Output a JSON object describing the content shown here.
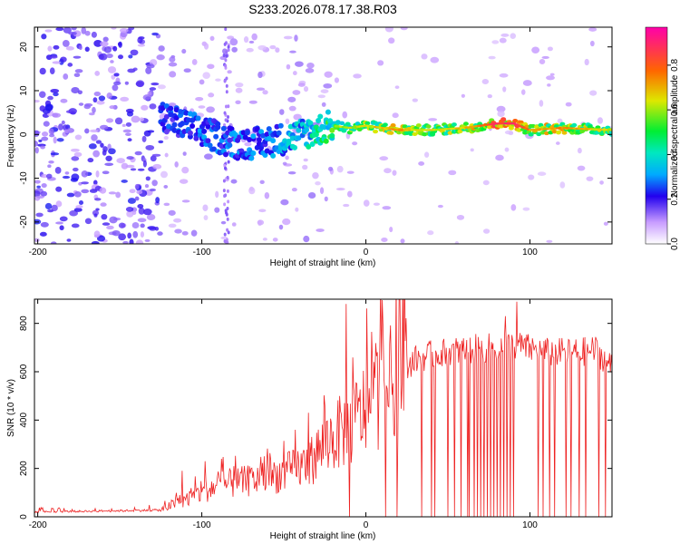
{
  "chart_data": [
    {
      "type": "heatmap",
      "title": "S233.2026.078.17.38.R03",
      "xlabel": "Height of straight line (km)",
      "ylabel": "Frequency (Hz)",
      "xlim": [
        -202,
        150
      ],
      "ylim": [
        -25,
        24.5
      ],
      "xticks": [
        -200,
        -100,
        0,
        100
      ],
      "xtick_labels": [
        "-200",
        "-100",
        "0",
        "100"
      ],
      "yticks": [
        -20,
        -10,
        0,
        10,
        20
      ],
      "ytick_labels": [
        "-20",
        "-10",
        "0",
        "10",
        "20"
      ],
      "colorbar": {
        "label": "Normalized spectral amplitude",
        "range": [
          0.0,
          0.97
        ],
        "ticks": [
          0.0,
          0.2,
          0.4,
          0.6,
          0.8
        ],
        "tick_labels": [
          "0.0",
          "0.2",
          "0.4",
          "0.6",
          "0.8"
        ]
      },
      "ridge": {
        "x": [
          -125,
          -110,
          -95,
          -80,
          -65,
          -50,
          -40,
          -30,
          -20,
          -10,
          0,
          20,
          40,
          60,
          80,
          90,
          100,
          120,
          150
        ],
        "y": [
          4,
          2,
          0,
          -2,
          -2,
          -1,
          0,
          1,
          2,
          1.5,
          2,
          1,
          1,
          1.5,
          2.5,
          2.5,
          1,
          1.5,
          1
        ],
        "amplitude": [
          0.25,
          0.3,
          0.3,
          0.3,
          0.3,
          0.35,
          0.4,
          0.45,
          0.55,
          0.6,
          0.6,
          0.7,
          0.6,
          0.65,
          0.85,
          0.9,
          0.7,
          0.7,
          0.6
        ]
      }
    },
    {
      "type": "line",
      "xlabel": "Height of straight line (km)",
      "ylabel": "SNR (10 * v/v)",
      "xlim": [
        -202,
        150
      ],
      "ylim": [
        0,
        900
      ],
      "xticks": [
        -200,
        -100,
        0,
        100
      ],
      "xtick_labels": [
        "-200",
        "-100",
        "0",
        "100"
      ],
      "yticks": [
        0,
        200,
        400,
        600,
        800
      ],
      "ytick_labels": [
        "0",
        "200",
        "400",
        "600",
        "800"
      ],
      "color": "#ee2222",
      "series": [
        {
          "name": "SNR",
          "envelope_x": [
            -202,
            -150,
            -125,
            -115,
            -100,
            -90,
            -70,
            -50,
            -35,
            -25,
            -20,
            -10,
            0,
            10,
            20,
            25,
            30,
            40,
            60,
            80,
            90,
            110,
            130,
            140,
            150
          ],
          "envelope_y": [
            20,
            25,
            28,
            60,
            100,
            130,
            150,
            180,
            220,
            300,
            330,
            370,
            450,
            520,
            580,
            620,
            650,
            670,
            690,
            700,
            710,
            680,
            680,
            690,
            620
          ],
          "spikes": [
            {
              "x": -112,
              "y": 190
            },
            {
              "x": -98,
              "y": 230
            },
            {
              "x": -88,
              "y": 240
            },
            {
              "x": -62,
              "y": 250
            },
            {
              "x": -43,
              "y": 360
            },
            {
              "x": -35,
              "y": 430
            },
            {
              "x": -25,
              "y": 460
            },
            {
              "x": -12,
              "y": 880
            },
            {
              "x": 5,
              "y": 640
            },
            {
              "x": 85,
              "y": 830
            },
            {
              "x": 92,
              "y": 890
            }
          ],
          "dropouts_x": [
            -10,
            12,
            19,
            34,
            40,
            42,
            50,
            54,
            58,
            62,
            63,
            66,
            68,
            70,
            72,
            74,
            76,
            78,
            80,
            82,
            84,
            86,
            88,
            90,
            105,
            108,
            112,
            115,
            122,
            125,
            130,
            134,
            142,
            146
          ]
        }
      ]
    }
  ]
}
